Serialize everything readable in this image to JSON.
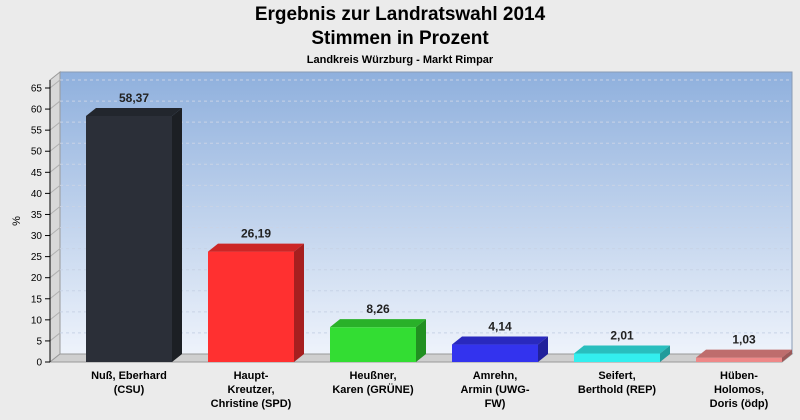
{
  "chart_data": {
    "type": "bar",
    "title": "Ergebnis zur Landratswahl 2014",
    "subtitle": "Stimmen in Prozent",
    "caption": "Landkreis Würzburg - Markt Rimpar",
    "ylabel": "%",
    "ylim": [
      0,
      65
    ],
    "yticks": [
      0,
      5,
      10,
      15,
      20,
      25,
      30,
      35,
      40,
      45,
      50,
      55,
      60,
      65
    ],
    "categories": [
      [
        "Nuß, Eberhard",
        "(CSU)"
      ],
      [
        "Haupt-",
        "Kreutzer,",
        "Christine (SPD)"
      ],
      [
        "Heußner,",
        "Karen (GRÜNE)"
      ],
      [
        "Amrehn,",
        "Armin (UWG-",
        "FW)"
      ],
      [
        "Seifert,",
        "Berthold (REP)"
      ],
      [
        "Hüben-",
        "Holomos,",
        "Doris (ödp)"
      ]
    ],
    "values": [
      58.37,
      26.19,
      8.26,
      4.14,
      2.01,
      1.03
    ],
    "value_labels": [
      "58,37",
      "26,19",
      "8,26",
      "4,14",
      "2,01",
      "1,03"
    ],
    "colors": [
      "#2b2f38",
      "#ff3030",
      "#33dd33",
      "#3333ee",
      "#33eeee",
      "#ee8888"
    ],
    "grid": true
  }
}
